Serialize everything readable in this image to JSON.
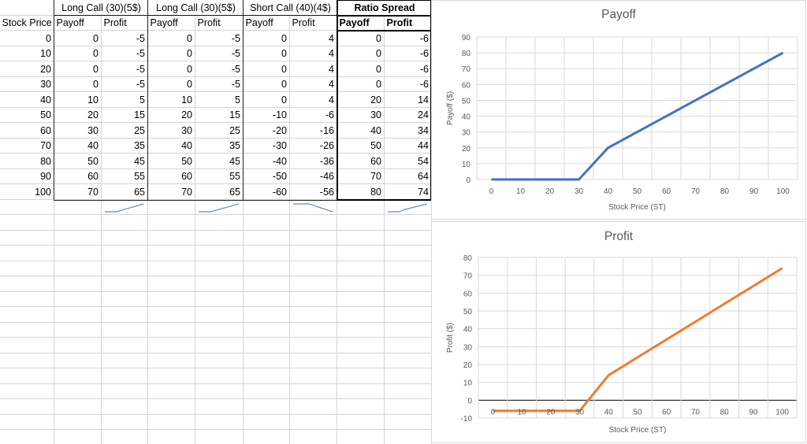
{
  "sheet": {
    "group_headers": [
      {
        "label": "Long Call (30)(5$)"
      },
      {
        "label": "Long Call (30)(5$)"
      },
      {
        "label": "Short Call (40)(4$)"
      },
      {
        "label": "Ratio Spread"
      }
    ],
    "column_headers": [
      "Stock Price",
      "Payoff",
      "Profit",
      "Payoff",
      "Profit",
      "Payoff",
      "Profit",
      "Payoff",
      "Profit"
    ],
    "rows": [
      [
        "0",
        "0",
        "-5",
        "0",
        "-5",
        "0",
        "4",
        "0",
        "-6"
      ],
      [
        "10",
        "0",
        "-5",
        "0",
        "-5",
        "0",
        "4",
        "0",
        "-6"
      ],
      [
        "20",
        "0",
        "-5",
        "0",
        "-5",
        "0",
        "4",
        "0",
        "-6"
      ],
      [
        "30",
        "0",
        "-5",
        "0",
        "-5",
        "0",
        "4",
        "0",
        "-6"
      ],
      [
        "40",
        "10",
        "5",
        "10",
        "5",
        "0",
        "4",
        "20",
        "14"
      ],
      [
        "50",
        "20",
        "15",
        "20",
        "15",
        "-10",
        "-6",
        "30",
        "24"
      ],
      [
        "60",
        "30",
        "25",
        "30",
        "25",
        "-20",
        "-16",
        "40",
        "34"
      ],
      [
        "70",
        "40",
        "35",
        "40",
        "35",
        "-30",
        "-26",
        "50",
        "44"
      ],
      [
        "80",
        "50",
        "45",
        "50",
        "45",
        "-40",
        "-36",
        "60",
        "54"
      ],
      [
        "90",
        "60",
        "55",
        "60",
        "55",
        "-50",
        "-46",
        "70",
        "64"
      ],
      [
        "100",
        "70",
        "65",
        "70",
        "65",
        "-60",
        "-56",
        "80",
        "74"
      ]
    ],
    "sparkline_color": "#6a87b5"
  },
  "colors": {
    "payoff_line": "#4472c4",
    "profit_line": "#ed7d31",
    "gridline": "#d9d9d9",
    "axis_text": "#595959"
  },
  "chart_data": [
    {
      "type": "line",
      "title": "Payoff",
      "xlabel": "Stock Price (ST)",
      "ylabel": "Payoff ($)",
      "categories": [
        "0",
        "10",
        "20",
        "30",
        "40",
        "50",
        "60",
        "70",
        "80",
        "90",
        "100"
      ],
      "series": [
        {
          "name": "Ratio Spread Payoff",
          "values": [
            0,
            0,
            0,
            0,
            20,
            30,
            40,
            50,
            60,
            70,
            80
          ],
          "color": "#4472c4"
        }
      ],
      "ylim": [
        0,
        90
      ],
      "yticks": [
        0,
        10,
        20,
        30,
        40,
        50,
        60,
        70,
        80,
        90
      ],
      "grid": true,
      "legend": "none"
    },
    {
      "type": "line",
      "title": "Profit",
      "xlabel": "Stock Price (ST)",
      "ylabel": "Profit ($)",
      "categories": [
        "0",
        "10",
        "20",
        "30",
        "40",
        "50",
        "60",
        "70",
        "80",
        "90",
        "100"
      ],
      "series": [
        {
          "name": "Ratio Spread Profit",
          "values": [
            -6,
            -6,
            -6,
            -6,
            14,
            24,
            34,
            44,
            54,
            64,
            74
          ],
          "color": "#ed7d31"
        }
      ],
      "ylim": [
        -10,
        80
      ],
      "yticks": [
        -10,
        0,
        10,
        20,
        30,
        40,
        50,
        60,
        70,
        80
      ],
      "grid": true,
      "legend": "none"
    }
  ]
}
